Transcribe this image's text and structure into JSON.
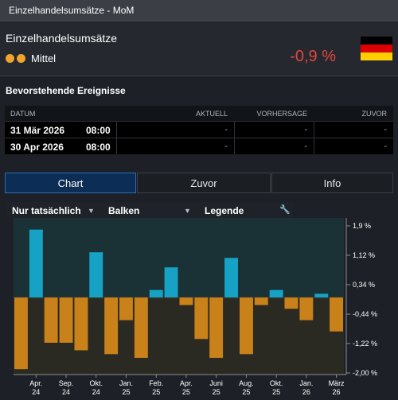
{
  "window": {
    "title": "Einzelhandelsumsätze - MoM"
  },
  "indicator": {
    "name": "Einzelhandelsumsätze",
    "importance_label": "Mittel",
    "change": "-0,9 %",
    "colors": {
      "importance_dot": "#f2a32a",
      "change": "#e2463d"
    },
    "flag": [
      "#000000",
      "#dd0000",
      "#ffce00"
    ]
  },
  "events": {
    "title": "Bevorstehende Ereignisse",
    "columns": [
      "DATUM",
      "AKTUELL",
      "VORHERSAGE",
      "ZUVOR"
    ],
    "rows": [
      {
        "date": "31 Mär 2026",
        "time": "08:00",
        "actual": "-",
        "forecast": "-",
        "previous": "-"
      },
      {
        "date": "30 Apr 2026",
        "time": "08:00",
        "actual": "-",
        "forecast": "-",
        "previous": "-"
      }
    ]
  },
  "tabs": [
    "Chart",
    "Zuvor",
    "Info"
  ],
  "toolbar": {
    "filter_label": "Nur tatsächlich",
    "type_label": "Balken",
    "legend_label": "Legende",
    "icons": [
      "chevron-down-icon",
      "chevron-down-icon",
      "wrench-icon"
    ]
  },
  "chart_data": {
    "type": "bar",
    "values": [
      -1.9,
      1.8,
      -1.2,
      -1.2,
      -1.4,
      1.2,
      -1.5,
      -0.6,
      -1.6,
      0.2,
      0.8,
      -0.2,
      -1.1,
      -1.6,
      1.05,
      -1.5,
      -0.2,
      0.2,
      -0.3,
      -0.6,
      0.1,
      -0.9
    ],
    "ylim": [
      -2.0,
      1.9
    ],
    "yticks": [
      "1,9 %",
      "1,12 %",
      "0,34 %",
      "-0,44 %",
      "-1,22 %",
      "-2,00 %"
    ],
    "yticks_values": [
      1.9,
      1.12,
      0.34,
      -0.44,
      -1.22,
      -2.0
    ],
    "xtick_labels": [
      {
        "top": "Apr.",
        "bottom": "24",
        "index": 1
      },
      {
        "top": "Sep.",
        "bottom": "24",
        "index": 3
      },
      {
        "top": "Okt.",
        "bottom": "24",
        "index": 5
      },
      {
        "top": "Jan.",
        "bottom": "25",
        "index": 7
      },
      {
        "top": "Feb.",
        "bottom": "25",
        "index": 9
      },
      {
        "top": "Apr.",
        "bottom": "25",
        "index": 11
      },
      {
        "top": "Juni",
        "bottom": "25",
        "index": 13
      },
      {
        "top": "Aug.",
        "bottom": "25",
        "index": 15
      },
      {
        "top": "Okt.",
        "bottom": "25",
        "index": 17
      },
      {
        "top": "Jan.",
        "bottom": "26",
        "index": 19
      },
      {
        "top": "März",
        "bottom": "26",
        "index": 21
      }
    ],
    "colors": {
      "positive": "#16a2c4",
      "negative": "#c9811a"
    },
    "grid": false,
    "legend": "none"
  }
}
